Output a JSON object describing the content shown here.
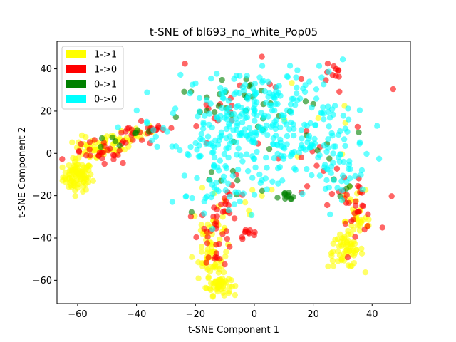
{
  "chart_data": {
    "type": "scatter",
    "title": "t-SNE of bl693_no_white_Pop05",
    "xlabel": "t-SNE Component 1",
    "ylabel": "t-SNE Component 2",
    "xlim": [
      -67,
      53
    ],
    "ylim": [
      -71,
      53
    ],
    "xticks": [
      -60,
      -40,
      -20,
      0,
      20,
      40
    ],
    "yticks": [
      -60,
      -40,
      -20,
      0,
      20,
      40
    ],
    "xtick_labels": [
      "−60",
      "−40",
      "−20",
      "0",
      "20",
      "40"
    ],
    "ytick_labels": [
      "−60",
      "−40",
      "−20",
      "0",
      "20",
      "40"
    ],
    "grid": false,
    "legend_position": "top-left",
    "point_alpha": 0.6,
    "series": [
      {
        "name": "1->1",
        "color": "#ffff00",
        "clusters": [
          {
            "cx": -60,
            "cy": -11,
            "sx": 2.5,
            "sy": 3.5,
            "n": 90
          },
          {
            "cx": -55,
            "cy": 2,
            "sx": 3,
            "sy": 3,
            "n": 40
          },
          {
            "cx": -47,
            "cy": 5,
            "sx": 4,
            "sy": 3,
            "n": 30
          },
          {
            "cx": -40,
            "cy": 10,
            "sx": 3,
            "sy": 2,
            "n": 15
          },
          {
            "cx": -12,
            "cy": -62,
            "sx": 2,
            "sy": 2.5,
            "n": 50
          },
          {
            "cx": -14,
            "cy": -50,
            "sx": 2.5,
            "sy": 4,
            "n": 40
          },
          {
            "cx": -15,
            "cy": -36,
            "sx": 3,
            "sy": 5,
            "n": 25
          },
          {
            "cx": 31,
            "cy": -46,
            "sx": 3,
            "sy": 4,
            "n": 60
          },
          {
            "cx": 36,
            "cy": -32,
            "sx": 2.5,
            "sy": 4,
            "n": 25
          },
          {
            "cx": 33,
            "cy": -22,
            "sx": 3,
            "sy": 3,
            "n": 10
          },
          {
            "cx": -10,
            "cy": -25,
            "sx": 8,
            "sy": 6,
            "n": 10
          },
          {
            "cx": 20,
            "cy": 5,
            "sx": 15,
            "sy": 15,
            "n": 8
          }
        ]
      },
      {
        "name": "1->0",
        "color": "#ff0000",
        "clusters": [
          {
            "cx": -52,
            "cy": 0,
            "sx": 5,
            "sy": 3,
            "n": 25
          },
          {
            "cx": -40,
            "cy": 8,
            "sx": 5,
            "sy": 3,
            "n": 20
          },
          {
            "cx": -33,
            "cy": 11,
            "sx": 2,
            "sy": 1.5,
            "n": 8
          },
          {
            "cx": -13,
            "cy": -38,
            "sx": 3,
            "sy": 8,
            "n": 30
          },
          {
            "cx": -8,
            "cy": -22,
            "sx": 3,
            "sy": 5,
            "n": 15
          },
          {
            "cx": -2,
            "cy": -38,
            "sx": 1.5,
            "sy": 1.2,
            "n": 10
          },
          {
            "cx": 34,
            "cy": -25,
            "sx": 4,
            "sy": 6,
            "n": 30
          },
          {
            "cx": 26,
            "cy": 38,
            "sx": 2,
            "sy": 3,
            "n": 10
          },
          {
            "cx": 5,
            "cy": 25,
            "sx": 18,
            "sy": 12,
            "n": 15
          },
          {
            "cx": -15,
            "cy": 20,
            "sx": 5,
            "sy": 6,
            "n": 8
          },
          {
            "cx": 20,
            "cy": -10,
            "sx": 12,
            "sy": 8,
            "n": 10
          }
        ]
      },
      {
        "name": "0->1",
        "color": "#008000",
        "clusters": [
          {
            "cx": 11,
            "cy": -21,
            "sx": 1.5,
            "sy": 1.5,
            "n": 12
          },
          {
            "cx": -12,
            "cy": 20,
            "sx": 7,
            "sy": 8,
            "n": 15
          },
          {
            "cx": 0,
            "cy": 28,
            "sx": 10,
            "sy": 8,
            "n": 12
          },
          {
            "cx": 15,
            "cy": 10,
            "sx": 12,
            "sy": 10,
            "n": 10
          },
          {
            "cx": -47,
            "cy": 5,
            "sx": 3,
            "sy": 2,
            "n": 5
          },
          {
            "cx": -40,
            "cy": 11,
            "sx": 2,
            "sy": 1,
            "n": 4
          },
          {
            "cx": -10,
            "cy": -15,
            "sx": 8,
            "sy": 8,
            "n": 8
          },
          {
            "cx": 30,
            "cy": -10,
            "sx": 5,
            "sy": 8,
            "n": 5
          }
        ]
      },
      {
        "name": "0->0",
        "color": "#00ffff",
        "clusters": [
          {
            "cx": -5,
            "cy": 18,
            "sx": 12,
            "sy": 10,
            "n": 140
          },
          {
            "cx": 15,
            "cy": 5,
            "sx": 12,
            "sy": 8,
            "n": 100
          },
          {
            "cx": 10,
            "cy": 28,
            "sx": 12,
            "sy": 8,
            "n": 60
          },
          {
            "cx": -15,
            "cy": 0,
            "sx": 6,
            "sy": 8,
            "n": 40
          },
          {
            "cx": 28,
            "cy": -10,
            "sx": 5,
            "sy": 6,
            "n": 30
          },
          {
            "cx": -10,
            "cy": -20,
            "sx": 8,
            "sy": 6,
            "n": 25
          },
          {
            "cx": 5,
            "cy": -10,
            "sx": 10,
            "sy": 6,
            "n": 25
          },
          {
            "cx": -35,
            "cy": 12,
            "sx": 3,
            "sy": 2,
            "n": 6
          }
        ]
      }
    ]
  }
}
